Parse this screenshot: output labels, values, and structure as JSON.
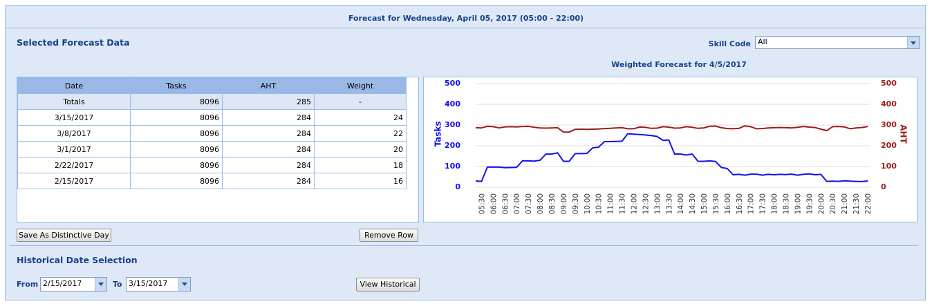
{
  "header": {
    "title": "Forecast for Wednesday, April 05, 2017 (05:00 - 22:00)"
  },
  "forecast": {
    "title": "Selected Forecast Data",
    "skill_label": "Skill Code",
    "skill_value": "All"
  },
  "table": {
    "columns": [
      "Date",
      "Tasks",
      "AHT",
      "Weight"
    ],
    "rows": [
      [
        "Totals",
        8096,
        285,
        "-"
      ],
      [
        "3/15/2017",
        8096,
        284,
        24
      ],
      [
        "3/8/2017",
        8096,
        284,
        22
      ],
      [
        "3/1/2017",
        8096,
        284,
        20
      ],
      [
        "2/22/2017",
        8096,
        284,
        18
      ],
      [
        "2/15/2017",
        8096,
        284,
        16
      ]
    ]
  },
  "buttons": {
    "save": "Save As Distinctive Day",
    "remove": "Remove Row"
  },
  "historical": {
    "title": "Historical Date Selection",
    "from_label": "From",
    "from_value": "2/15/2017",
    "to_label": "To",
    "to_value": "3/15/2017",
    "button": "View Historical"
  },
  "chart_data": {
    "type": "line",
    "title": "Weighted Forecast for 4/5/2017",
    "y_label": "Tasks",
    "y2_label": "AHT",
    "categories": [
      null,
      "05:30",
      null,
      "06:00",
      null,
      "06:30",
      null,
      "07:00",
      null,
      "07:30",
      null,
      "08:00",
      null,
      "08:30",
      null,
      "09:00",
      null,
      "09:30",
      null,
      "10:00",
      null,
      "10:30",
      null,
      "11:00",
      null,
      "11:30",
      null,
      "12:00",
      null,
      "12:30",
      null,
      "13:00",
      null,
      "13:30",
      null,
      "14:00",
      null,
      "14:30",
      null,
      "15:00",
      null,
      "15:30",
      null,
      "16:00",
      null,
      "16:30",
      null,
      "17:00",
      null,
      "17:30",
      null,
      "18:00",
      null,
      "18:30",
      null,
      "19:00",
      null,
      "19:30",
      null,
      "20:00",
      null,
      "20:30",
      null,
      "21:00",
      null,
      "21:30",
      null,
      "22:00"
    ],
    "series": [
      {
        "color": "#1010f0",
        "values": [
          30,
          28,
          97,
          97,
          97,
          94,
          95,
          96,
          127,
          127,
          126,
          130,
          160,
          160,
          166,
          125,
          125,
          162,
          162,
          163,
          190,
          193,
          220,
          220,
          221,
          222,
          258,
          256,
          254,
          252,
          249,
          245,
          226,
          228,
          160,
          160,
          155,
          160,
          125,
          125,
          127,
          124,
          95,
          90,
          60,
          62,
          58,
          63,
          63,
          58,
          62,
          60,
          62,
          61,
          63,
          58,
          62,
          64,
          60,
          62,
          28,
          29,
          28,
          31,
          29,
          28,
          27,
          30
        ]
      },
      {
        "color": "#9b1b1b",
        "axis": "y2",
        "values": [
          287,
          286,
          294,
          292,
          286,
          291,
          292,
          291,
          293,
          294,
          289,
          286,
          285,
          286,
          287,
          266,
          266,
          279,
          280,
          279,
          280,
          281,
          283,
          284,
          286,
          287,
          282,
          282,
          290,
          289,
          284,
          285,
          292,
          290,
          285,
          286,
          292,
          289,
          284,
          286,
          294,
          295,
          287,
          283,
          282,
          284,
          296,
          292,
          282,
          283,
          286,
          287,
          288,
          287,
          286,
          289,
          293,
          290,
          288,
          280,
          273,
          292,
          293,
          291,
          282,
          286,
          288,
          293
        ]
      }
    ],
    "ylim": [
      0,
      500
    ],
    "yticks": [
      0,
      100,
      200,
      300,
      400,
      500
    ],
    "y2lim": [
      0,
      500
    ],
    "y2ticks": [
      0,
      100,
      200,
      300,
      400,
      500
    ],
    "grid": true
  }
}
